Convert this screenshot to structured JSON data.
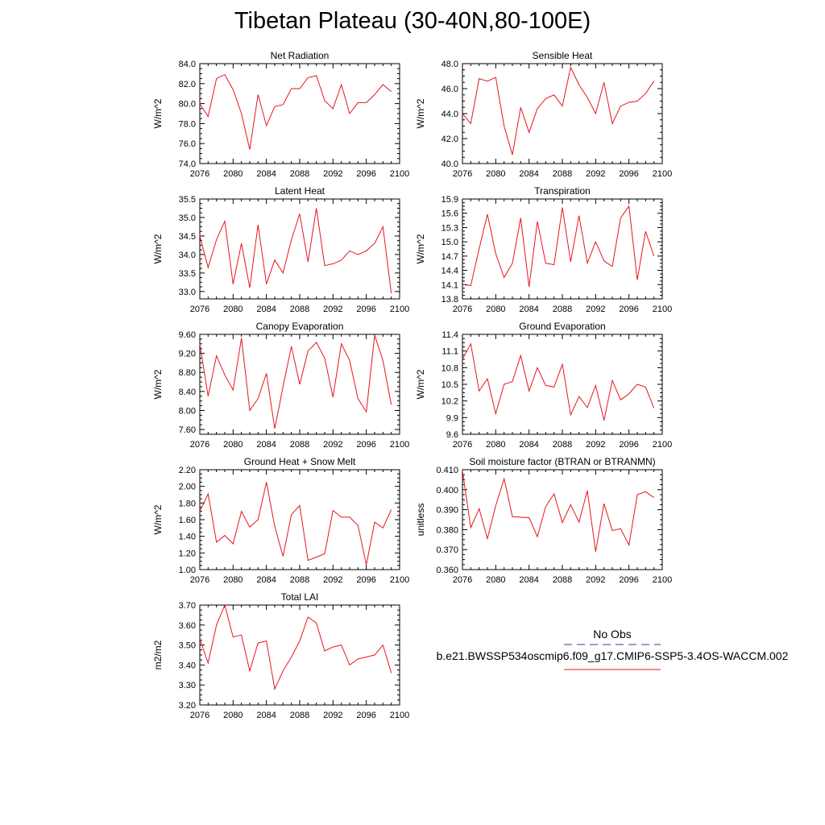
{
  "title": "Tibetan Plateau (30-40N,80-100E)",
  "line_color": "#e8141c",
  "obs_color": "#3b3b9e",
  "legend": {
    "obs_label": "No Obs",
    "run_label": "b.e21.BWSSP534oscmip6.f09_g17.CMIP6-SSP5-3.4OS-WACCM.002"
  },
  "chart_data": [
    {
      "type": "line",
      "title": "Net Radiation",
      "ylabel": "W/m^2",
      "xlim": [
        2076,
        2100
      ],
      "xticks": [
        2076,
        2080,
        2084,
        2088,
        2092,
        2096,
        2100
      ],
      "ylim": [
        74.0,
        84.0
      ],
      "yticks": [
        "74.0",
        "76.0",
        "78.0",
        "80.0",
        "82.0",
        "84.0"
      ],
      "x": [
        2076,
        2077,
        2078,
        2079,
        2080,
        2081,
        2082,
        2083,
        2084,
        2085,
        2086,
        2087,
        2088,
        2089,
        2090,
        2091,
        2092,
        2093,
        2094,
        2095,
        2096,
        2097,
        2098,
        2099
      ],
      "values": [
        80.0,
        78.7,
        82.5,
        82.9,
        81.4,
        79.0,
        75.4,
        80.9,
        77.8,
        79.7,
        79.9,
        81.5,
        81.5,
        82.6,
        82.8,
        80.3,
        79.5,
        81.9,
        79.0,
        80.1,
        80.1,
        80.9,
        81.9,
        81.2
      ]
    },
    {
      "type": "line",
      "title": "Sensible Heat",
      "ylabel": "W/m^2",
      "xlim": [
        2076,
        2100
      ],
      "xticks": [
        2076,
        2080,
        2084,
        2088,
        2092,
        2096,
        2100
      ],
      "ylim": [
        40.0,
        48.0
      ],
      "yticks": [
        "40.0",
        "42.0",
        "44.0",
        "46.0",
        "48.0"
      ],
      "x": [
        2076,
        2077,
        2078,
        2079,
        2080,
        2081,
        2082,
        2083,
        2084,
        2085,
        2086,
        2087,
        2088,
        2089,
        2090,
        2091,
        2092,
        2093,
        2094,
        2095,
        2096,
        2097,
        2098,
        2099
      ],
      "values": [
        44.0,
        43.2,
        46.8,
        46.6,
        46.9,
        43.0,
        40.7,
        44.5,
        42.5,
        44.4,
        45.2,
        45.5,
        44.6,
        47.7,
        46.3,
        45.3,
        44.0,
        46.5,
        43.2,
        44.6,
        44.9,
        45.0,
        45.6,
        46.6
      ]
    },
    {
      "type": "line",
      "title": "Latent Heat",
      "ylabel": "W/m^2",
      "xlim": [
        2076,
        2100
      ],
      "xticks": [
        2076,
        2080,
        2084,
        2088,
        2092,
        2096,
        2100
      ],
      "ylim": [
        32.8,
        35.5
      ],
      "yticks": [
        "33.0",
        "33.5",
        "34.0",
        "34.5",
        "35.0",
        "35.5"
      ],
      "x": [
        2076,
        2077,
        2078,
        2079,
        2080,
        2081,
        2082,
        2083,
        2084,
        2085,
        2086,
        2087,
        2088,
        2089,
        2090,
        2091,
        2092,
        2093,
        2094,
        2095,
        2096,
        2097,
        2098,
        2099
      ],
      "values": [
        34.5,
        33.65,
        34.4,
        34.9,
        33.2,
        34.3,
        33.1,
        34.8,
        33.2,
        33.85,
        33.5,
        34.4,
        35.1,
        33.8,
        35.25,
        33.7,
        33.75,
        33.85,
        34.1,
        34.0,
        34.1,
        34.3,
        34.75,
        32.95
      ]
    },
    {
      "type": "line",
      "title": "Transpiration",
      "ylabel": "W/m^2",
      "xlim": [
        2076,
        2100
      ],
      "xticks": [
        2076,
        2080,
        2084,
        2088,
        2092,
        2096,
        2100
      ],
      "ylim": [
        13.8,
        15.9
      ],
      "yticks": [
        "13.8",
        "14.1",
        "14.4",
        "14.7",
        "15.0",
        "15.3",
        "15.6",
        "15.9"
      ],
      "x": [
        2076,
        2077,
        2078,
        2079,
        2080,
        2081,
        2082,
        2083,
        2084,
        2085,
        2086,
        2087,
        2088,
        2089,
        2090,
        2091,
        2092,
        2093,
        2094,
        2095,
        2096,
        2097,
        2098,
        2099
      ],
      "values": [
        14.1,
        14.08,
        14.85,
        15.58,
        14.75,
        14.25,
        14.55,
        15.5,
        14.05,
        15.43,
        14.55,
        14.52,
        15.72,
        14.58,
        15.55,
        14.55,
        15.0,
        14.6,
        14.48,
        15.5,
        15.75,
        14.2,
        15.22,
        14.7
      ]
    },
    {
      "type": "line",
      "title": "Canopy Evaporation",
      "ylabel": "W/m^2",
      "xlim": [
        2076,
        2100
      ],
      "xticks": [
        2076,
        2080,
        2084,
        2088,
        2092,
        2096,
        2100
      ],
      "ylim": [
        7.5,
        9.6
      ],
      "yticks": [
        "7.60",
        "8.00",
        "8.40",
        "8.80",
        "9.20",
        "9.60"
      ],
      "x": [
        2076,
        2077,
        2078,
        2079,
        2080,
        2081,
        2082,
        2083,
        2084,
        2085,
        2086,
        2087,
        2088,
        2089,
        2090,
        2091,
        2092,
        2093,
        2094,
        2095,
        2096,
        2097,
        2098,
        2099
      ],
      "values": [
        9.4,
        8.3,
        9.15,
        8.75,
        8.43,
        9.52,
        8.0,
        8.25,
        8.78,
        7.62,
        8.5,
        9.35,
        8.55,
        9.25,
        9.43,
        9.1,
        8.28,
        9.4,
        9.05,
        8.25,
        7.97,
        9.58,
        9.05,
        8.12
      ]
    },
    {
      "type": "line",
      "title": "Ground Evaporation",
      "ylabel": "W/m^2",
      "xlim": [
        2076,
        2100
      ],
      "xticks": [
        2076,
        2080,
        2084,
        2088,
        2092,
        2096,
        2100
      ],
      "ylim": [
        9.6,
        11.4
      ],
      "yticks": [
        "9.6",
        "9.9",
        "10.2",
        "10.5",
        "10.8",
        "11.1",
        "11.4"
      ],
      "x": [
        2076,
        2077,
        2078,
        2079,
        2080,
        2081,
        2082,
        2083,
        2084,
        2085,
        2086,
        2087,
        2088,
        2089,
        2090,
        2091,
        2092,
        2093,
        2094,
        2095,
        2096,
        2097,
        2098,
        2099
      ],
      "values": [
        10.95,
        11.23,
        10.38,
        10.6,
        9.97,
        10.5,
        10.55,
        11.02,
        10.38,
        10.8,
        10.48,
        10.45,
        10.86,
        9.95,
        10.28,
        10.08,
        10.48,
        9.85,
        10.57,
        10.22,
        10.33,
        10.5,
        10.45,
        10.07
      ]
    },
    {
      "type": "line",
      "title": "Ground Heat + Snow Melt",
      "ylabel": "W/m^2",
      "xlim": [
        2076,
        2100
      ],
      "xticks": [
        2076,
        2080,
        2084,
        2088,
        2092,
        2096,
        2100
      ],
      "ylim": [
        1.0,
        2.2
      ],
      "yticks": [
        "1.00",
        "1.20",
        "1.40",
        "1.60",
        "1.80",
        "2.00",
        "2.20"
      ],
      "x": [
        2076,
        2077,
        2078,
        2079,
        2080,
        2081,
        2082,
        2083,
        2084,
        2085,
        2086,
        2087,
        2088,
        2089,
        2090,
        2091,
        2092,
        2093,
        2094,
        2095,
        2096,
        2097,
        2098,
        2099
      ],
      "values": [
        1.7,
        1.91,
        1.33,
        1.41,
        1.31,
        1.7,
        1.51,
        1.6,
        2.05,
        1.52,
        1.16,
        1.66,
        1.77,
        1.11,
        1.15,
        1.19,
        1.71,
        1.63,
        1.63,
        1.53,
        1.06,
        1.57,
        1.5,
        1.72
      ]
    },
    {
      "type": "line",
      "title": "Soil moisture factor (BTRAN or BTRANMN)",
      "ylabel": "unitless",
      "xlim": [
        2076,
        2100
      ],
      "xticks": [
        2076,
        2080,
        2084,
        2088,
        2092,
        2096,
        2100
      ],
      "ylim": [
        0.36,
        0.41
      ],
      "yticks": [
        "0.360",
        "0.370",
        "0.380",
        "0.390",
        "0.400",
        "0.410"
      ],
      "x": [
        2076,
        2077,
        2078,
        2079,
        2080,
        2081,
        2082,
        2083,
        2084,
        2085,
        2086,
        2087,
        2088,
        2089,
        2090,
        2091,
        2092,
        2093,
        2094,
        2095,
        2096,
        2097,
        2098,
        2099
      ],
      "values": [
        0.4095,
        0.381,
        0.3905,
        0.3755,
        0.392,
        0.4055,
        0.3865,
        0.3862,
        0.386,
        0.3765,
        0.3915,
        0.398,
        0.3835,
        0.3925,
        0.3838,
        0.3995,
        0.369,
        0.393,
        0.3795,
        0.3805,
        0.3723,
        0.3975,
        0.399,
        0.396
      ]
    },
    {
      "type": "line",
      "title": "Total LAI",
      "ylabel": "m2/m2",
      "xlim": [
        2076,
        2100
      ],
      "xticks": [
        2076,
        2080,
        2084,
        2088,
        2092,
        2096,
        2100
      ],
      "ylim": [
        3.2,
        3.7
      ],
      "yticks": [
        "3.20",
        "3.30",
        "3.40",
        "3.50",
        "3.60",
        "3.70"
      ],
      "x": [
        2076,
        2077,
        2078,
        2079,
        2080,
        2081,
        2082,
        2083,
        2084,
        2085,
        2086,
        2087,
        2088,
        2089,
        2090,
        2091,
        2092,
        2093,
        2094,
        2095,
        2096,
        2097,
        2098,
        2099
      ],
      "values": [
        3.53,
        3.41,
        3.6,
        3.7,
        3.54,
        3.55,
        3.37,
        3.51,
        3.52,
        3.28,
        3.37,
        3.44,
        3.52,
        3.64,
        3.61,
        3.47,
        3.49,
        3.5,
        3.4,
        3.43,
        3.44,
        3.45,
        3.5,
        3.36
      ]
    }
  ]
}
